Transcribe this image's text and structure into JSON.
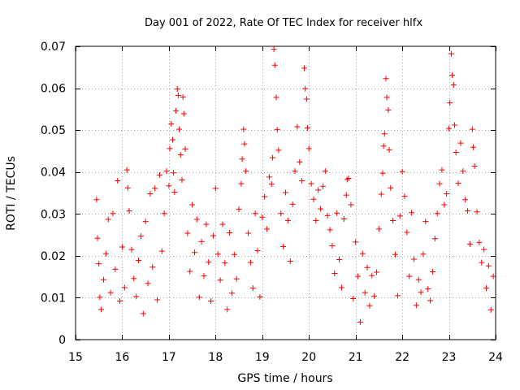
{
  "colors": {
    "series": "#ff0000",
    "axis": "#000000",
    "grid": "#a0a0a0",
    "background": "#ffffff"
  },
  "chart_data": {
    "type": "scatter",
    "title": "Day 001 of 2022, Rate Of TEC Index for receiver hlfx",
    "xlabel": "GPS time / hours",
    "ylabel": "ROTI / TECUs",
    "xlim": [
      15,
      24
    ],
    "ylim": [
      0,
      0.07
    ],
    "xticks": [
      15,
      16,
      17,
      18,
      19,
      20,
      21,
      22,
      23,
      24
    ],
    "xtick_labels": [
      "15",
      "16",
      "17",
      "18",
      "19",
      "20",
      "21",
      "22",
      "23",
      "24"
    ],
    "yticks": [
      0,
      0.01,
      0.02,
      0.03,
      0.04,
      0.05,
      0.06,
      0.07
    ],
    "ytick_labels": [
      "0",
      "0.01",
      "0.02",
      "0.03",
      "0.04",
      "0.05",
      "0.06",
      "0.07"
    ],
    "grid": true,
    "marker": "plus",
    "series": [
      {
        "name": "ROTI",
        "points": [
          [
            15.45,
            0.0334
          ],
          [
            15.47,
            0.0242
          ],
          [
            15.5,
            0.0181
          ],
          [
            15.52,
            0.0101
          ],
          [
            15.55,
            0.0072
          ],
          [
            15.6,
            0.0143
          ],
          [
            15.65,
            0.0205
          ],
          [
            15.7,
            0.0287
          ],
          [
            15.75,
            0.0112
          ],
          [
            15.8,
            0.0301
          ],
          [
            15.85,
            0.0168
          ],
          [
            15.9,
            0.0379
          ],
          [
            15.95,
            0.0092
          ],
          [
            16.0,
            0.0221
          ],
          [
            16.05,
            0.0124
          ],
          [
            16.1,
            0.0405
          ],
          [
            16.12,
            0.0362
          ],
          [
            16.15,
            0.0307
          ],
          [
            16.2,
            0.0215
          ],
          [
            16.25,
            0.0146
          ],
          [
            16.3,
            0.0103
          ],
          [
            16.35,
            0.0189
          ],
          [
            16.4,
            0.0247
          ],
          [
            16.45,
            0.0062
          ],
          [
            16.5,
            0.0282
          ],
          [
            16.55,
            0.0134
          ],
          [
            16.6,
            0.0348
          ],
          [
            16.65,
            0.0173
          ],
          [
            16.7,
            0.0361
          ],
          [
            16.75,
            0.0095
          ],
          [
            16.8,
            0.0393
          ],
          [
            16.85,
            0.0211
          ],
          [
            16.9,
            0.0301
          ],
          [
            16.95,
            0.0402
          ],
          [
            17.0,
            0.0367
          ],
          [
            17.02,
            0.0456
          ],
          [
            17.05,
            0.0515
          ],
          [
            17.08,
            0.0477
          ],
          [
            17.1,
            0.0398
          ],
          [
            17.12,
            0.0352
          ],
          [
            17.15,
            0.0546
          ],
          [
            17.18,
            0.0598
          ],
          [
            17.2,
            0.0583
          ],
          [
            17.22,
            0.0502
          ],
          [
            17.25,
            0.0441
          ],
          [
            17.28,
            0.0381
          ],
          [
            17.3,
            0.0579
          ],
          [
            17.32,
            0.0539
          ],
          [
            17.35,
            0.0455
          ],
          [
            17.4,
            0.0254
          ],
          [
            17.45,
            0.0163
          ],
          [
            17.5,
            0.0322
          ],
          [
            17.55,
            0.0208
          ],
          [
            17.6,
            0.0287
          ],
          [
            17.65,
            0.0101
          ],
          [
            17.7,
            0.0234
          ],
          [
            17.75,
            0.0152
          ],
          [
            17.8,
            0.0275
          ],
          [
            17.85,
            0.0185
          ],
          [
            17.9,
            0.0092
          ],
          [
            17.95,
            0.0248
          ],
          [
            18.0,
            0.0361
          ],
          [
            18.05,
            0.0204
          ],
          [
            18.1,
            0.0142
          ],
          [
            18.15,
            0.0275
          ],
          [
            18.2,
            0.0183
          ],
          [
            18.25,
            0.0072
          ],
          [
            18.3,
            0.0255
          ],
          [
            18.35,
            0.0111
          ],
          [
            18.4,
            0.0203
          ],
          [
            18.45,
            0.0145
          ],
          [
            18.5,
            0.0311
          ],
          [
            18.55,
            0.0372
          ],
          [
            18.57,
            0.0431
          ],
          [
            18.6,
            0.0502
          ],
          [
            18.62,
            0.0467
          ],
          [
            18.65,
            0.0402
          ],
          [
            18.7,
            0.0254
          ],
          [
            18.75,
            0.0184
          ],
          [
            18.8,
            0.0123
          ],
          [
            18.85,
            0.0301
          ],
          [
            18.9,
            0.0212
          ],
          [
            18.95,
            0.0102
          ],
          [
            19.0,
            0.0292
          ],
          [
            19.05,
            0.0341
          ],
          [
            19.1,
            0.0264
          ],
          [
            19.15,
            0.0388
          ],
          [
            19.2,
            0.0371
          ],
          [
            19.22,
            0.0434
          ],
          [
            19.25,
            0.0693
          ],
          [
            19.27,
            0.0655
          ],
          [
            19.3,
            0.0578
          ],
          [
            19.32,
            0.0501
          ],
          [
            19.35,
            0.0452
          ],
          [
            19.4,
            0.0301
          ],
          [
            19.45,
            0.0222
          ],
          [
            19.5,
            0.0351
          ],
          [
            19.55,
            0.0284
          ],
          [
            19.6,
            0.0187
          ],
          [
            19.65,
            0.0323
          ],
          [
            19.7,
            0.0402
          ],
          [
            19.75,
            0.0508
          ],
          [
            19.8,
            0.0424
          ],
          [
            19.85,
            0.0379
          ],
          [
            19.9,
            0.0648
          ],
          [
            19.92,
            0.0599
          ],
          [
            19.95,
            0.0574
          ],
          [
            19.97,
            0.0505
          ],
          [
            20.0,
            0.0456
          ],
          [
            20.05,
            0.0372
          ],
          [
            20.1,
            0.0335
          ],
          [
            20.15,
            0.0284
          ],
          [
            20.2,
            0.0357
          ],
          [
            20.25,
            0.0312
          ],
          [
            20.3,
            0.0366
          ],
          [
            20.35,
            0.0402
          ],
          [
            20.4,
            0.0296
          ],
          [
            20.45,
            0.0262
          ],
          [
            20.5,
            0.0224
          ],
          [
            20.55,
            0.0158
          ],
          [
            20.6,
            0.0302
          ],
          [
            20.65,
            0.0191
          ],
          [
            20.7,
            0.0124
          ],
          [
            20.75,
            0.0288
          ],
          [
            20.8,
            0.0345
          ],
          [
            20.82,
            0.0382
          ],
          [
            20.85,
            0.0385
          ],
          [
            20.9,
            0.0322
          ],
          [
            20.95,
            0.0098
          ],
          [
            21.0,
            0.0233
          ],
          [
            21.05,
            0.0151
          ],
          [
            21.1,
            0.0042
          ],
          [
            21.15,
            0.0205
          ],
          [
            21.2,
            0.0112
          ],
          [
            21.25,
            0.0172
          ],
          [
            21.3,
            0.0081
          ],
          [
            21.35,
            0.0153
          ],
          [
            21.4,
            0.0104
          ],
          [
            21.45,
            0.0161
          ],
          [
            21.5,
            0.0264
          ],
          [
            21.55,
            0.0347
          ],
          [
            21.58,
            0.0397
          ],
          [
            21.6,
            0.0462
          ],
          [
            21.62,
            0.0491
          ],
          [
            21.65,
            0.0623
          ],
          [
            21.67,
            0.0578
          ],
          [
            21.7,
            0.0548
          ],
          [
            21.72,
            0.0453
          ],
          [
            21.75,
            0.0362
          ],
          [
            21.8,
            0.0284
          ],
          [
            21.85,
            0.0203
          ],
          [
            21.9,
            0.0105
          ],
          [
            21.95,
            0.0295
          ],
          [
            22.0,
            0.0401
          ],
          [
            22.05,
            0.0342
          ],
          [
            22.1,
            0.0256
          ],
          [
            22.15,
            0.0151
          ],
          [
            22.2,
            0.0303
          ],
          [
            22.25,
            0.0192
          ],
          [
            22.3,
            0.0082
          ],
          [
            22.35,
            0.0143
          ],
          [
            22.4,
            0.0113
          ],
          [
            22.45,
            0.0204
          ],
          [
            22.5,
            0.0282
          ],
          [
            22.55,
            0.0121
          ],
          [
            22.6,
            0.0093
          ],
          [
            22.65,
            0.0162
          ],
          [
            22.7,
            0.0241
          ],
          [
            22.75,
            0.0301
          ],
          [
            22.8,
            0.0372
          ],
          [
            22.85,
            0.0405
          ],
          [
            22.9,
            0.0322
          ],
          [
            22.95,
            0.0348
          ],
          [
            23.0,
            0.0504
          ],
          [
            23.02,
            0.0565
          ],
          [
            23.05,
            0.0682
          ],
          [
            23.07,
            0.0631
          ],
          [
            23.1,
            0.0608
          ],
          [
            23.12,
            0.0512
          ],
          [
            23.15,
            0.0447
          ],
          [
            23.2,
            0.0373
          ],
          [
            23.25,
            0.0469
          ],
          [
            23.3,
            0.0402
          ],
          [
            23.35,
            0.0334
          ],
          [
            23.4,
            0.0307
          ],
          [
            23.45,
            0.0228
          ],
          [
            23.5,
            0.0502
          ],
          [
            23.52,
            0.0459
          ],
          [
            23.55,
            0.0414
          ],
          [
            23.6,
            0.0305
          ],
          [
            23.65,
            0.0232
          ],
          [
            23.7,
            0.0184
          ],
          [
            23.75,
            0.0215
          ],
          [
            23.8,
            0.0123
          ],
          [
            23.85,
            0.0176
          ],
          [
            23.9,
            0.0071
          ],
          [
            23.95,
            0.0151
          ]
        ]
      }
    ]
  }
}
